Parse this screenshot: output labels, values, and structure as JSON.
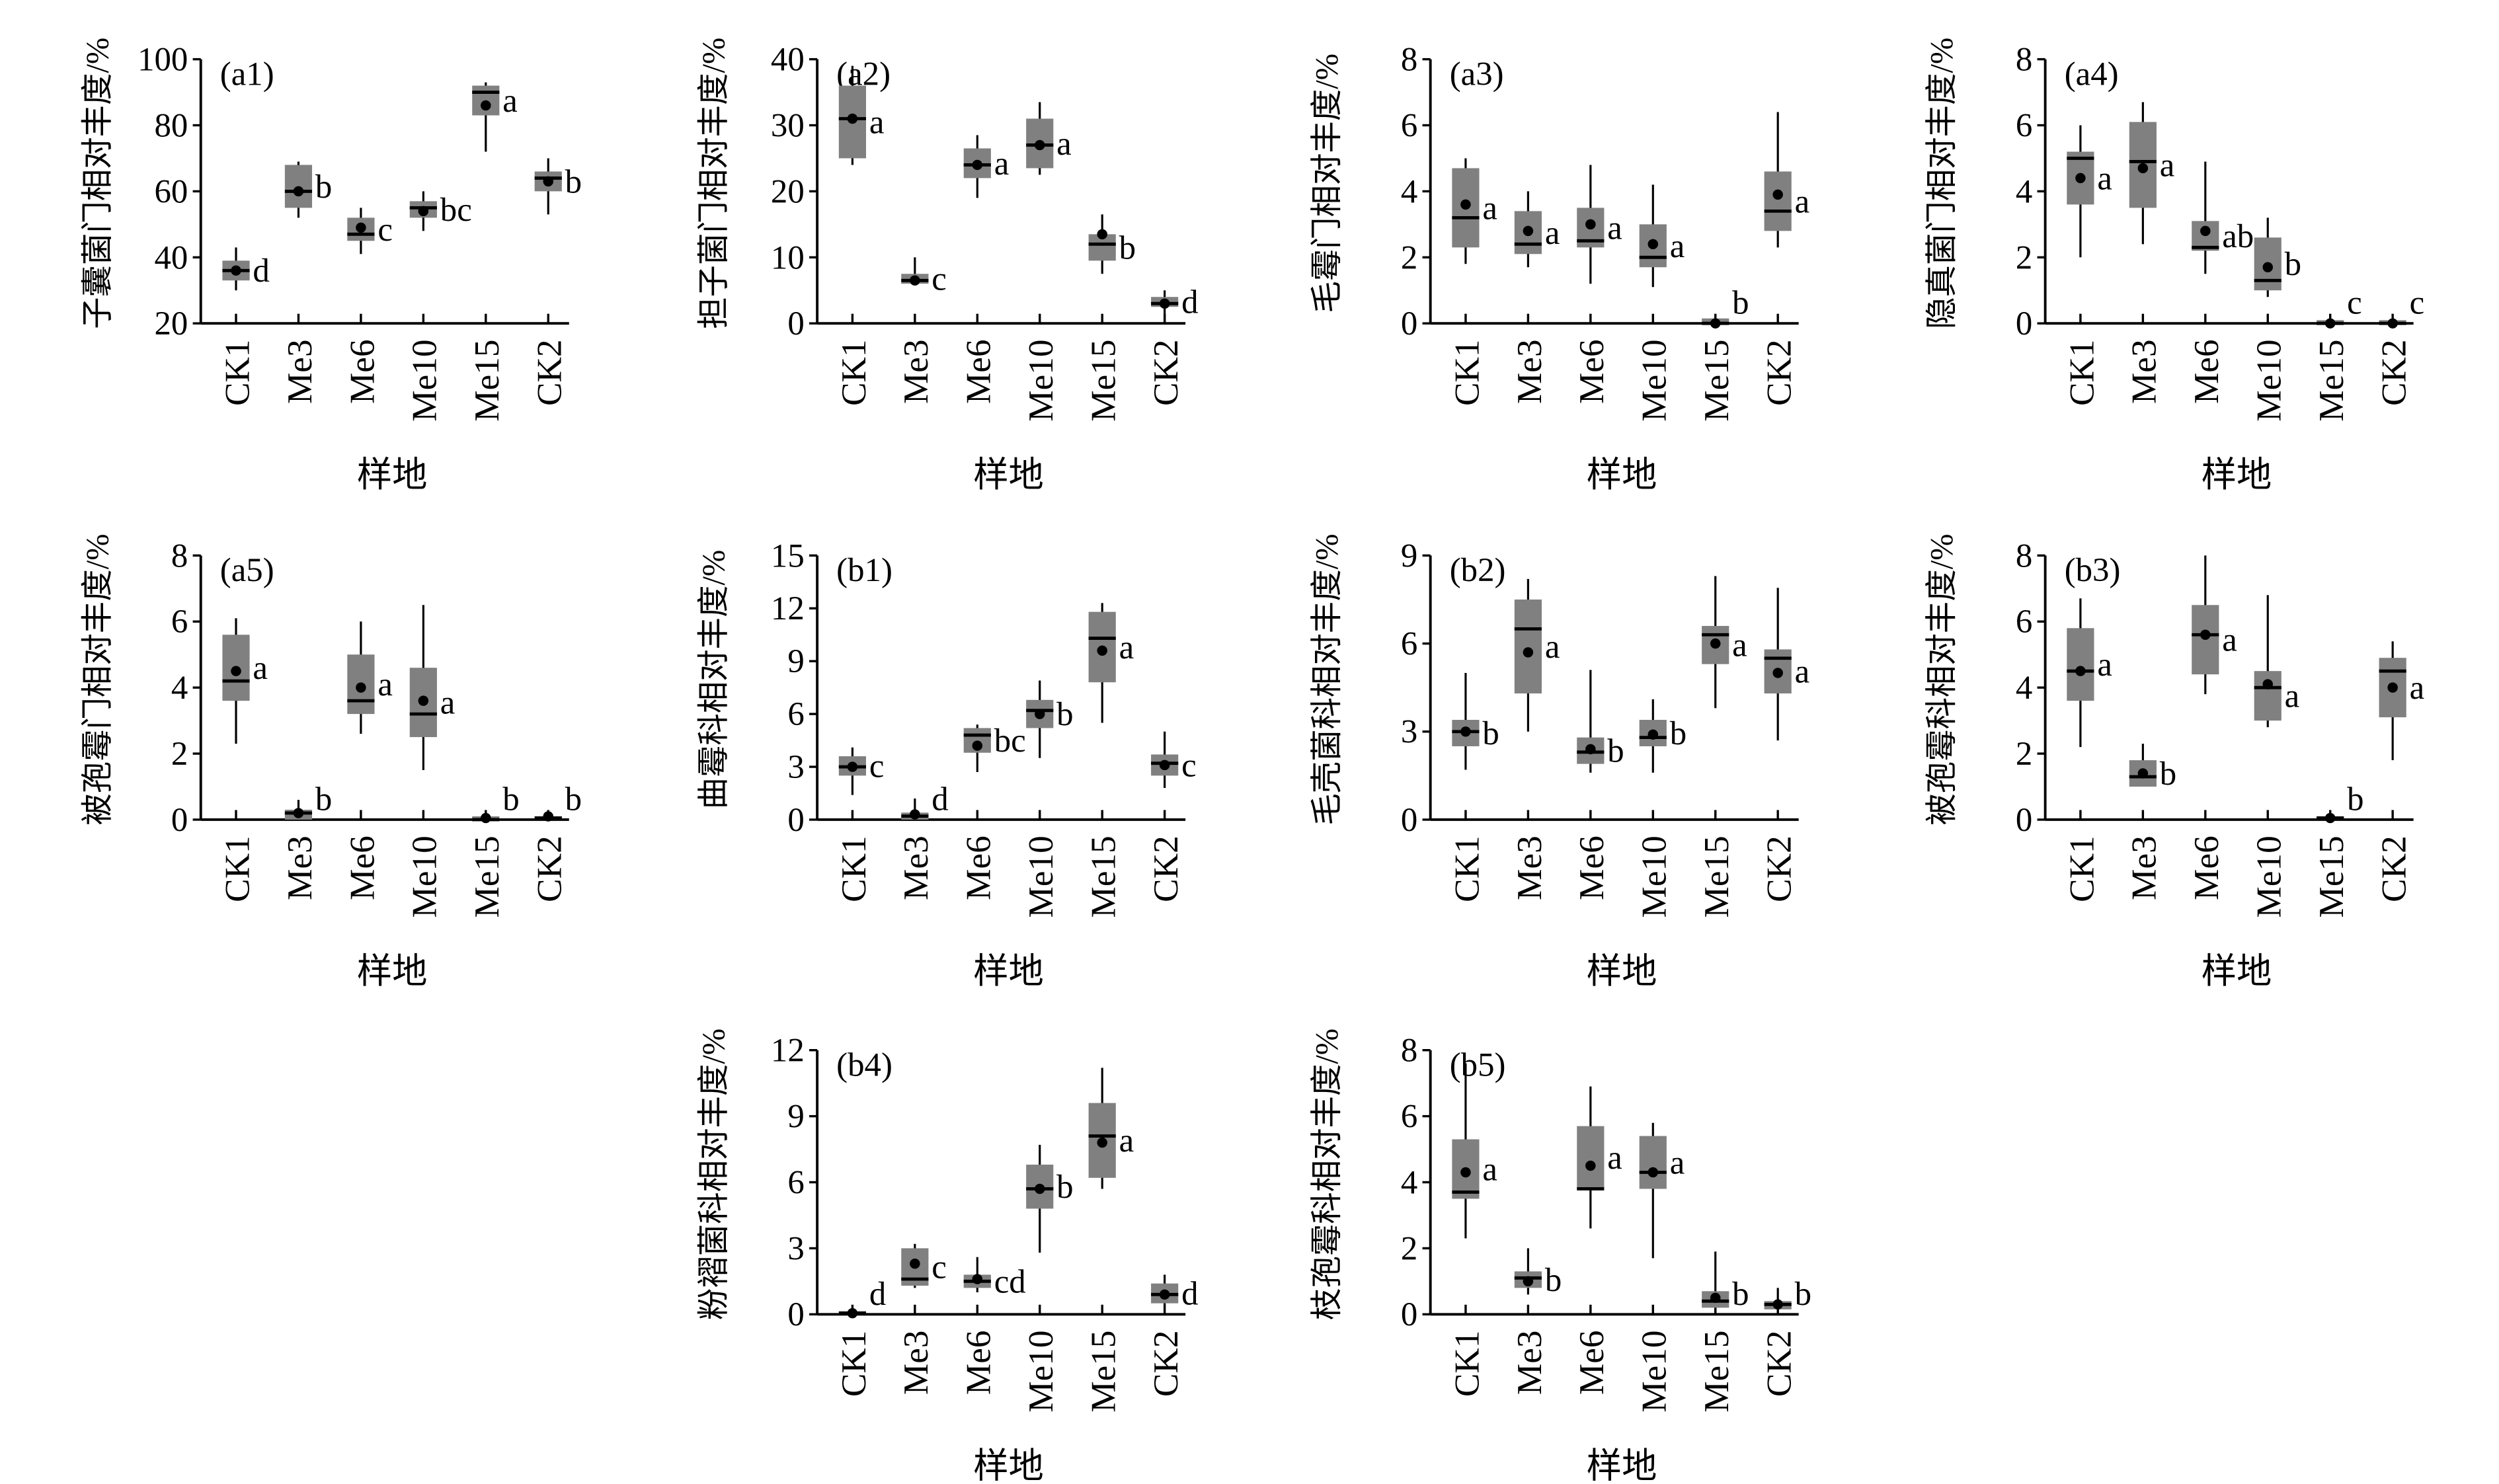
{
  "categories_label": "样地",
  "chart_data": [
    {
      "type": "box",
      "panel": "(a1)",
      "ylabel": "子囊菌门相对丰度/%",
      "ylim": [
        20,
        100
      ],
      "yticks": [
        20,
        40,
        60,
        80,
        100
      ],
      "categories": [
        "CK1",
        "Me3",
        "Me6",
        "Me10",
        "Me15",
        "CK2"
      ],
      "boxes": [
        {
          "min": 30,
          "q1": 33,
          "median": 36,
          "q3": 39,
          "max": 43,
          "mean": 36,
          "letter": "d"
        },
        {
          "min": 52,
          "q1": 55,
          "median": 60,
          "q3": 68,
          "max": 69,
          "mean": 60,
          "letter": "b"
        },
        {
          "min": 41,
          "q1": 45,
          "median": 47,
          "q3": 52,
          "max": 55,
          "mean": 49,
          "letter": "c"
        },
        {
          "min": 48,
          "q1": 52,
          "median": 55,
          "q3": 57,
          "max": 60,
          "mean": 54,
          "letter": "bc"
        },
        {
          "min": 72,
          "q1": 83,
          "median": 90,
          "q3": 92,
          "max": 93,
          "mean": 86,
          "letter": "a"
        },
        {
          "min": 53,
          "q1": 60,
          "median": 64,
          "q3": 66,
          "max": 70,
          "mean": 63,
          "letter": "b"
        }
      ]
    },
    {
      "type": "box",
      "panel": "(a2)",
      "ylabel": "担子菌门相对丰度/%",
      "ylim": [
        0,
        40
      ],
      "yticks": [
        0,
        10,
        20,
        30,
        40
      ],
      "categories": [
        "CK1",
        "Me3",
        "Me6",
        "Me10",
        "Me15",
        "CK2"
      ],
      "boxes": [
        {
          "min": 24,
          "q1": 25,
          "median": 31,
          "q3": 36,
          "max": 39,
          "mean": 31,
          "letter": "a"
        },
        {
          "min": 6,
          "q1": 6,
          "median": 6.5,
          "q3": 7.5,
          "max": 10,
          "mean": 6.5,
          "letter": "c"
        },
        {
          "min": 19,
          "q1": 22,
          "median": 24,
          "q3": 26.5,
          "max": 28.5,
          "mean": 24,
          "letter": "a"
        },
        {
          "min": 22.5,
          "q1": 23.5,
          "median": 27,
          "q3": 31,
          "max": 33.5,
          "mean": 27,
          "letter": "a"
        },
        {
          "min": 7.5,
          "q1": 9.5,
          "median": 12,
          "q3": 13.5,
          "max": 16.5,
          "mean": 13.5,
          "letter": "b"
        },
        {
          "min": 0,
          "q1": 2.5,
          "median": 3,
          "q3": 4,
          "max": 5,
          "mean": 3,
          "letter": "d"
        }
      ]
    },
    {
      "type": "box",
      "panel": "(a3)",
      "ylabel": "毛霉门相对丰度/%",
      "ylim": [
        0,
        8
      ],
      "yticks": [
        0,
        2,
        4,
        6,
        8
      ],
      "categories": [
        "CK1",
        "Me3",
        "Me6",
        "Me10",
        "Me15",
        "CK2"
      ],
      "boxes": [
        {
          "min": 1.8,
          "q1": 2.3,
          "median": 3.2,
          "q3": 4.7,
          "max": 5,
          "mean": 3.6,
          "letter": "a"
        },
        {
          "min": 1.7,
          "q1": 2.1,
          "median": 2.4,
          "q3": 3.4,
          "max": 4,
          "mean": 2.8,
          "letter": "a"
        },
        {
          "min": 1.2,
          "q1": 2.3,
          "median": 2.5,
          "q3": 3.5,
          "max": 4.8,
          "mean": 3.0,
          "letter": "a"
        },
        {
          "min": 1.1,
          "q1": 1.7,
          "median": 2.0,
          "q3": 3.0,
          "max": 4.2,
          "mean": 2.4,
          "letter": "a"
        },
        {
          "min": 0,
          "q1": 0,
          "median": 0,
          "q3": 0.15,
          "max": 0.2,
          "mean": 0,
          "letter": "b"
        },
        {
          "min": 2.3,
          "q1": 2.8,
          "median": 3.4,
          "q3": 4.6,
          "max": 6.4,
          "mean": 3.9,
          "letter": "a"
        }
      ]
    },
    {
      "type": "box",
      "panel": "(a4)",
      "ylabel": "隐真菌门相对丰度/%",
      "ylim": [
        0,
        8
      ],
      "yticks": [
        0,
        2,
        4,
        6,
        8
      ],
      "categories": [
        "CK1",
        "Me3",
        "Me6",
        "Me10",
        "Me15",
        "CK2"
      ],
      "boxes": [
        {
          "min": 2.0,
          "q1": 3.6,
          "median": 5.0,
          "q3": 5.2,
          "max": 6.0,
          "mean": 4.4,
          "letter": "a"
        },
        {
          "min": 2.4,
          "q1": 3.5,
          "median": 4.9,
          "q3": 6.1,
          "max": 6.7,
          "mean": 4.7,
          "letter": "a"
        },
        {
          "min": 1.5,
          "q1": 2.2,
          "median": 2.3,
          "q3": 3.1,
          "max": 4.9,
          "mean": 2.8,
          "letter": "ab"
        },
        {
          "min": 0.8,
          "q1": 1.0,
          "median": 1.3,
          "q3": 2.6,
          "max": 3.2,
          "mean": 1.7,
          "letter": "b"
        },
        {
          "min": 0,
          "q1": 0,
          "median": 0,
          "q3": 0.05,
          "max": 0.05,
          "mean": 0,
          "letter": "c"
        },
        {
          "min": 0,
          "q1": 0,
          "median": 0,
          "q3": 0.05,
          "max": 0.05,
          "mean": 0,
          "letter": "c"
        }
      ]
    },
    {
      "type": "box",
      "panel": "(a5)",
      "ylabel": "被孢霉门相对丰度/%",
      "ylim": [
        0,
        8
      ],
      "yticks": [
        0,
        2,
        4,
        6,
        8
      ],
      "categories": [
        "CK1",
        "Me3",
        "Me6",
        "Me10",
        "Me15",
        "CK2"
      ],
      "boxes": [
        {
          "min": 2.3,
          "q1": 3.6,
          "median": 4.2,
          "q3": 5.6,
          "max": 6.1,
          "mean": 4.5,
          "letter": "a"
        },
        {
          "min": 0,
          "q1": 0,
          "median": 0.2,
          "q3": 0.3,
          "max": 0.6,
          "mean": 0.2,
          "letter": "b"
        },
        {
          "min": 2.6,
          "q1": 3.2,
          "median": 3.6,
          "q3": 5.0,
          "max": 6.0,
          "mean": 4.0,
          "letter": "a"
        },
        {
          "min": 1.5,
          "q1": 2.5,
          "median": 3.2,
          "q3": 4.6,
          "max": 6.5,
          "mean": 3.6,
          "letter": "a"
        },
        {
          "min": 0,
          "q1": 0,
          "median": 0,
          "q3": 0.1,
          "max": 0.1,
          "mean": 0.05,
          "letter": "b"
        },
        {
          "min": 0,
          "q1": 0,
          "median": 0.05,
          "q3": 0.1,
          "max": 0.1,
          "mean": 0.1,
          "letter": "b"
        }
      ]
    },
    {
      "type": "box",
      "panel": "(b1)",
      "ylabel": "曲霉科相对丰度/%",
      "ylim": [
        0,
        15
      ],
      "yticks": [
        0,
        3,
        6,
        9,
        12,
        15
      ],
      "categories": [
        "CK1",
        "Me3",
        "Me6",
        "Me10",
        "Me15",
        "CK2"
      ],
      "boxes": [
        {
          "min": 1.4,
          "q1": 2.5,
          "median": 3.0,
          "q3": 3.6,
          "max": 4.1,
          "mean": 3.0,
          "letter": "c"
        },
        {
          "min": 0,
          "q1": 0,
          "median": 0.2,
          "q3": 0.4,
          "max": 1.2,
          "mean": 0.3,
          "letter": "d"
        },
        {
          "min": 2.7,
          "q1": 3.8,
          "median": 4.8,
          "q3": 5.2,
          "max": 5.4,
          "mean": 4.2,
          "letter": "bc"
        },
        {
          "min": 3.5,
          "q1": 5.2,
          "median": 6.2,
          "q3": 6.8,
          "max": 7.9,
          "mean": 6.0,
          "letter": "b"
        },
        {
          "min": 5.5,
          "q1": 7.8,
          "median": 10.3,
          "q3": 11.8,
          "max": 12.3,
          "mean": 9.6,
          "letter": "a"
        },
        {
          "min": 1.8,
          "q1": 2.5,
          "median": 3.2,
          "q3": 3.7,
          "max": 5.0,
          "mean": 3.1,
          "letter": "c"
        }
      ]
    },
    {
      "type": "box",
      "panel": "(b2)",
      "ylabel": "毛壳菌科相对丰度/%",
      "ylim": [
        0,
        9
      ],
      "yticks": [
        0,
        3,
        6,
        9
      ],
      "categories": [
        "CK1",
        "Me3",
        "Me6",
        "Me10",
        "Me15",
        "CK2"
      ],
      "boxes": [
        {
          "min": 1.7,
          "q1": 2.5,
          "median": 3.0,
          "q3": 3.4,
          "max": 5.0,
          "mean": 3.0,
          "letter": "b"
        },
        {
          "min": 3.0,
          "q1": 4.3,
          "median": 6.5,
          "q3": 7.5,
          "max": 8.2,
          "mean": 5.7,
          "letter": "a"
        },
        {
          "min": 1.6,
          "q1": 1.9,
          "median": 2.3,
          "q3": 2.8,
          "max": 5.1,
          "mean": 2.4,
          "letter": "b"
        },
        {
          "min": 1.6,
          "q1": 2.5,
          "median": 2.8,
          "q3": 3.4,
          "max": 4.1,
          "mean": 2.9,
          "letter": "b"
        },
        {
          "min": 3.8,
          "q1": 5.3,
          "median": 6.3,
          "q3": 6.6,
          "max": 8.3,
          "mean": 6.0,
          "letter": "a"
        },
        {
          "min": 2.7,
          "q1": 4.3,
          "median": 5.5,
          "q3": 5.8,
          "max": 7.9,
          "mean": 5.0,
          "letter": "a"
        }
      ]
    },
    {
      "type": "box",
      "panel": "(b3)",
      "ylabel": "被孢霉科相对丰度/%",
      "ylim": [
        0,
        8
      ],
      "yticks": [
        0,
        2,
        4,
        6,
        8
      ],
      "categories": [
        "CK1",
        "Me3",
        "Me6",
        "Me10",
        "Me15",
        "CK2"
      ],
      "boxes": [
        {
          "min": 2.2,
          "q1": 3.6,
          "median": 4.5,
          "q3": 5.8,
          "max": 6.7,
          "mean": 4.5,
          "letter": "a"
        },
        {
          "min": 1.0,
          "q1": 1.0,
          "median": 1.3,
          "q3": 1.8,
          "max": 2.3,
          "mean": 1.4,
          "letter": "b"
        },
        {
          "min": 3.8,
          "q1": 4.4,
          "median": 5.6,
          "q3": 6.5,
          "max": 8.0,
          "mean": 5.6,
          "letter": "a"
        },
        {
          "min": 2.8,
          "q1": 3.0,
          "median": 4.0,
          "q3": 4.5,
          "max": 6.8,
          "mean": 4.1,
          "letter": "a"
        },
        {
          "min": 0,
          "q1": 0,
          "median": 0.05,
          "q3": 0.1,
          "max": 0.1,
          "mean": 0.05,
          "letter": "b"
        },
        {
          "min": 1.8,
          "q1": 3.1,
          "median": 4.5,
          "q3": 4.9,
          "max": 5.4,
          "mean": 4.0,
          "letter": "a"
        }
      ]
    },
    {
      "type": "box",
      "panel": "(b4)",
      "ylabel": "粉褶菌科相对丰度/%",
      "ylim": [
        0,
        12
      ],
      "yticks": [
        0,
        3,
        6,
        9,
        12
      ],
      "categories": [
        "CK1",
        "Me3",
        "Me6",
        "Me10",
        "Me15",
        "CK2"
      ],
      "boxes": [
        {
          "min": 0,
          "q1": 0,
          "median": 0.05,
          "q3": 0.1,
          "max": 0.2,
          "mean": 0.05,
          "letter": "d"
        },
        {
          "min": 1.2,
          "q1": 1.3,
          "median": 1.6,
          "q3": 3.0,
          "max": 3.2,
          "mean": 2.3,
          "letter": "c"
        },
        {
          "min": 1.0,
          "q1": 1.2,
          "median": 1.5,
          "q3": 1.8,
          "max": 2.6,
          "mean": 1.6,
          "letter": "cd"
        },
        {
          "min": 2.8,
          "q1": 4.8,
          "median": 5.7,
          "q3": 6.8,
          "max": 7.7,
          "mean": 5.7,
          "letter": "b"
        },
        {
          "min": 5.7,
          "q1": 6.2,
          "median": 8.1,
          "q3": 9.6,
          "max": 11.2,
          "mean": 7.8,
          "letter": "a"
        },
        {
          "min": 0.4,
          "q1": 0.5,
          "median": 0.9,
          "q3": 1.4,
          "max": 1.8,
          "mean": 0.9,
          "letter": "d"
        }
      ]
    },
    {
      "type": "box",
      "panel": "(b5)",
      "ylabel": "枝孢霉科相对丰度/%",
      "ylim": [
        0,
        8
      ],
      "yticks": [
        0,
        2,
        4,
        6,
        8
      ],
      "categories": [
        "CK1",
        "Me3",
        "Me6",
        "Me10",
        "Me15",
        "CK2"
      ],
      "boxes": [
        {
          "min": 2.3,
          "q1": 3.5,
          "median": 3.7,
          "q3": 5.3,
          "max": 7.6,
          "mean": 4.3,
          "letter": "a"
        },
        {
          "min": 0.6,
          "q1": 0.8,
          "median": 1.1,
          "q3": 1.3,
          "max": 2.0,
          "mean": 1.0,
          "letter": "b"
        },
        {
          "min": 2.6,
          "q1": 3.8,
          "median": 3.8,
          "q3": 5.7,
          "max": 6.9,
          "mean": 4.5,
          "letter": "a"
        },
        {
          "min": 1.7,
          "q1": 3.8,
          "median": 4.3,
          "q3": 5.4,
          "max": 5.8,
          "mean": 4.3,
          "letter": "a"
        },
        {
          "min": 0,
          "q1": 0.2,
          "median": 0.4,
          "q3": 0.7,
          "max": 1.9,
          "mean": 0.5,
          "letter": "b"
        },
        {
          "min": 0,
          "q1": 0.15,
          "median": 0.3,
          "q3": 0.4,
          "max": 0.8,
          "mean": 0.3,
          "letter": "b"
        }
      ]
    }
  ],
  "colors": {
    "box": "#808080",
    "line": "#000000"
  }
}
